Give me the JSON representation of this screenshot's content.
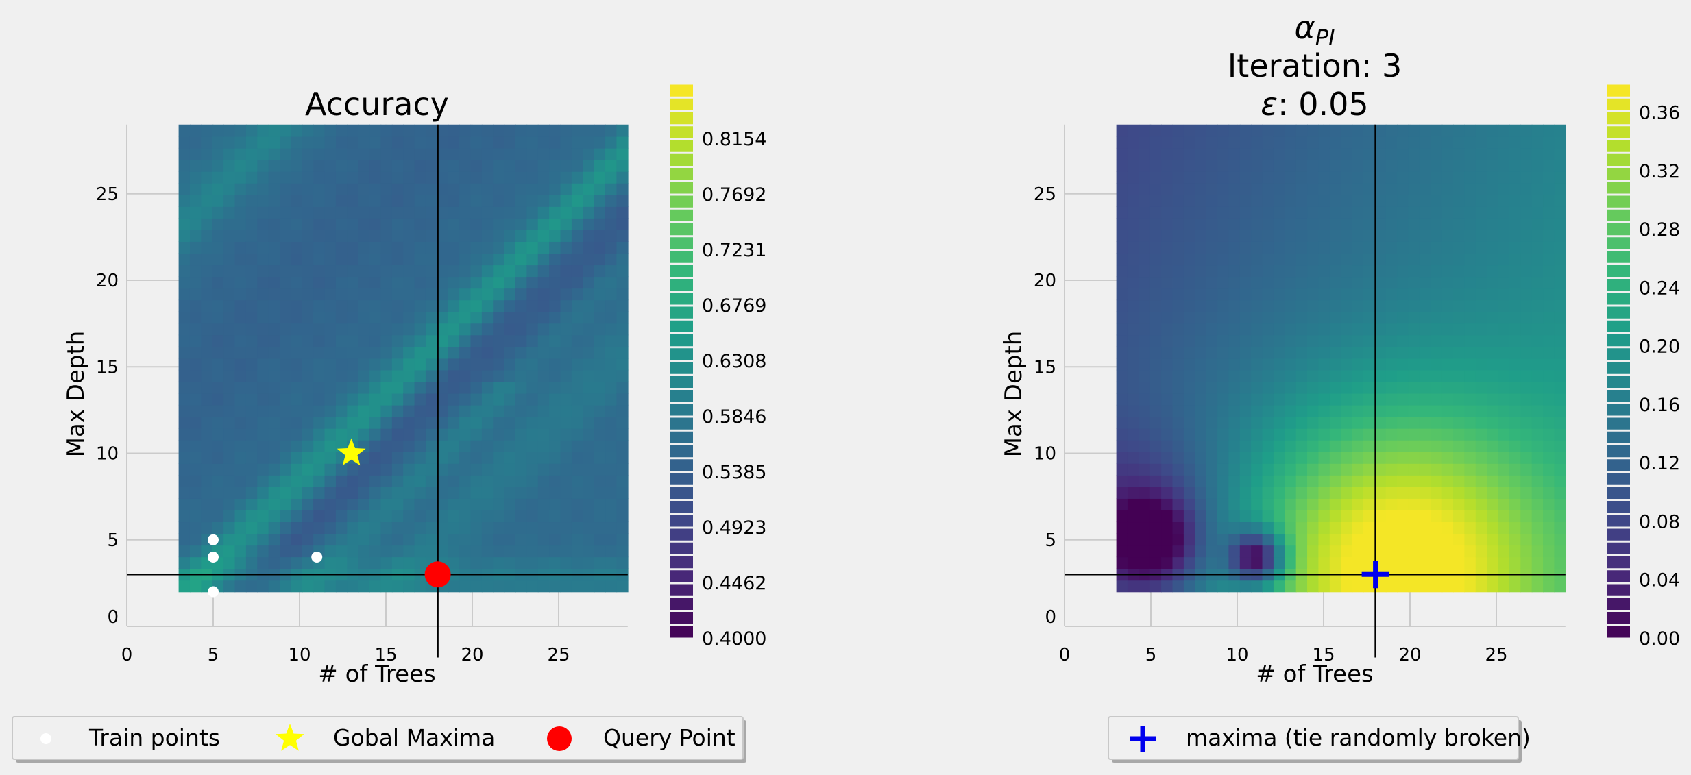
{
  "chart_data": [
    {
      "type": "heatmap",
      "title": "Accuracy",
      "xlabel": "# of Trees",
      "ylabel": "Max Depth",
      "xlim": [
        0,
        29
      ],
      "ylim": [
        0,
        29
      ],
      "heatmap_extent": {
        "x": [
          3,
          29
        ],
        "y": [
          2,
          29
        ]
      },
      "xticks": [
        0,
        5,
        10,
        15,
        20,
        25
      ],
      "yticks": [
        0,
        5,
        10,
        15,
        20,
        25
      ],
      "grid": true,
      "colormap": "viridis",
      "colorbar": {
        "min": 0.4,
        "max": 0.8615,
        "levels": 40,
        "tick_values": [
          0.4,
          0.4462,
          0.4923,
          0.5385,
          0.5846,
          0.6308,
          0.6769,
          0.7231,
          0.7692,
          0.8154
        ],
        "tick_labels": [
          "0.4000",
          "0.4462",
          "0.4923",
          "0.5385",
          "0.5846",
          "0.6308",
          "0.6769",
          "0.7231",
          "0.7692",
          "0.8154"
        ]
      },
      "train_points": [
        [
          5,
          5
        ],
        [
          5,
          4
        ],
        [
          5,
          2
        ],
        [
          11,
          4
        ]
      ],
      "global_maxima": [
        13,
        10
      ],
      "query_point": [
        18,
        3
      ],
      "crosshair": [
        18,
        3
      ],
      "legend": {
        "placement": "bottom",
        "items": [
          {
            "label": "Train points",
            "marker": "circle",
            "color": "#ffffff"
          },
          {
            "label": "Gobal Maxima",
            "marker": "star",
            "color": "#ffff00"
          },
          {
            "label": "Query Point",
            "marker": "circle",
            "color": "#ff0000"
          }
        ]
      }
    },
    {
      "type": "heatmap",
      "title_symbol": "α",
      "title_subscript": "PI",
      "title_line2": "Iteration: 3",
      "title_eps_symbol": "ε",
      "title_eps_value": ": 0.05",
      "xlabel": "# of Trees",
      "ylabel": "Max Depth",
      "xlim": [
        0,
        29
      ],
      "ylim": [
        0,
        29
      ],
      "heatmap_extent": {
        "x": [
          3,
          29
        ],
        "y": [
          2,
          29
        ]
      },
      "xticks": [
        0,
        5,
        10,
        15,
        20,
        25
      ],
      "yticks": [
        0,
        5,
        10,
        15,
        20,
        25
      ],
      "grid": true,
      "colormap": "viridis",
      "colorbar": {
        "min": 0.0,
        "max": 0.38,
        "levels": 40,
        "tick_values": [
          0.0,
          0.04,
          0.08,
          0.12,
          0.16,
          0.2,
          0.24,
          0.28,
          0.32,
          0.36
        ],
        "tick_labels": [
          "0.00",
          "0.04",
          "0.08",
          "0.12",
          "0.16",
          "0.20",
          "0.24",
          "0.28",
          "0.32",
          "0.36"
        ]
      },
      "maxima": [
        18,
        3
      ],
      "crosshair": [
        18,
        3
      ],
      "legend": {
        "placement": "bottom",
        "items": [
          {
            "label": "maxima (tie randomly broken)",
            "marker": "plus",
            "color": "#0000ee"
          }
        ]
      }
    }
  ]
}
